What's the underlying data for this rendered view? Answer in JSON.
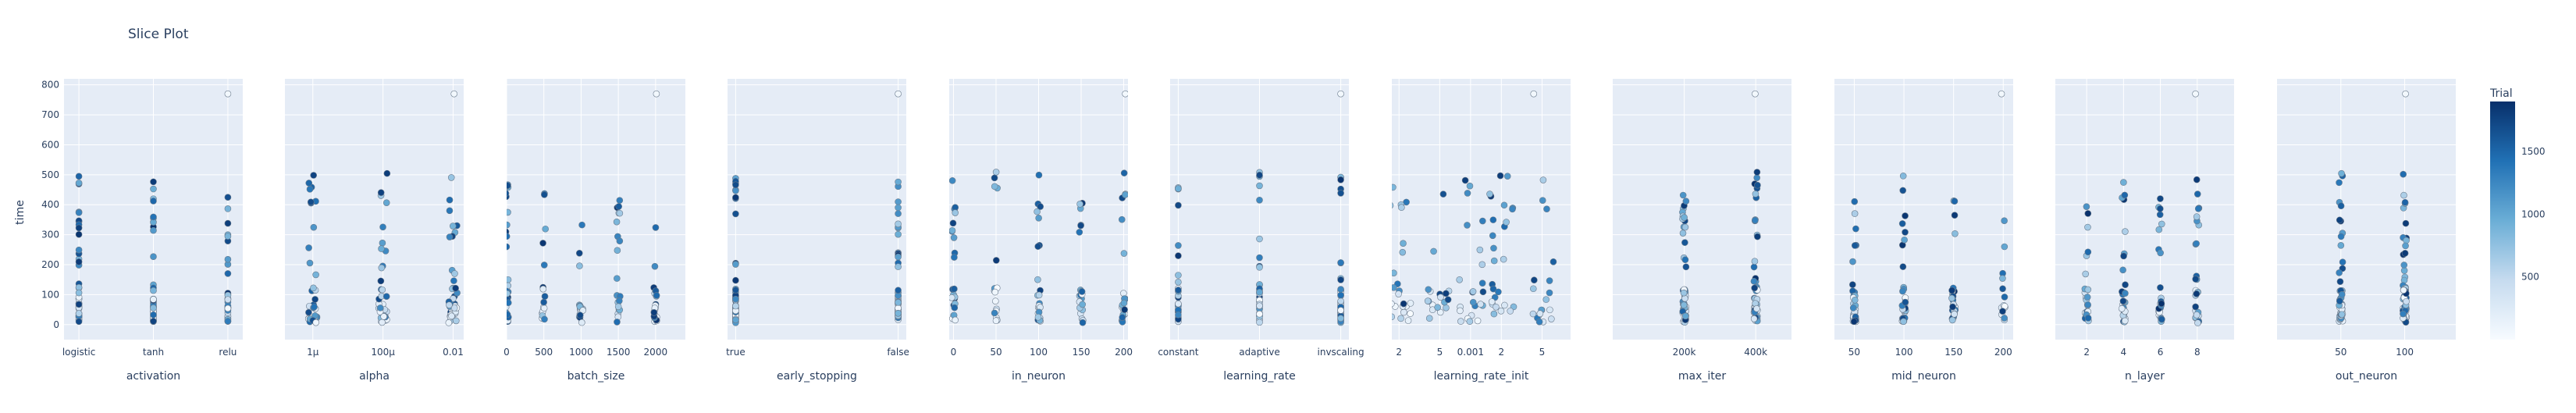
{
  "chart_data": {
    "type": "scatter",
    "title": "Slice Plot",
    "ylabel": "time",
    "y_ticks": [
      "0",
      "100",
      "200",
      "300",
      "400",
      "500",
      "600",
      "700",
      "800"
    ],
    "ylim": [
      -50,
      820
    ],
    "y_scale": "linear",
    "grid": true,
    "colorbar": {
      "title": "Trial",
      "range": [
        0,
        1900
      ],
      "ticks": [
        "500",
        "1000",
        "1500"
      ],
      "tick_values": [
        500,
        1000,
        1500
      ],
      "colors": [
        "#f7fbff",
        "#c6dbef",
        "#6baed6",
        "#2171b5",
        "#08306b"
      ]
    },
    "colors": {
      "plot_bg": "#e5ecf6",
      "grid": "#ffffff",
      "marker_line": "#6a7a8c",
      "text": "#2a3f5f"
    },
    "panels": [
      {
        "xlabel": "activation",
        "x_scale": "categorical",
        "categories": [
          "logistic",
          "tanh",
          "relu"
        ],
        "ticks": [
          "logistic",
          "tanh",
          "relu"
        ],
        "tick_values": [
          0,
          1,
          2
        ],
        "xlim": [
          -0.2,
          2.2
        ]
      },
      {
        "xlabel": "alpha",
        "x_scale": "log",
        "ticks": [
          "1μ",
          "100μ",
          "0.01"
        ],
        "tick_values": [
          1e-06,
          0.0001,
          0.01
        ],
        "xlim": [
          1.6e-07,
          0.02
        ]
      },
      {
        "xlabel": "batch_size",
        "x_scale": "linear",
        "ticks": [
          "0",
          "500",
          "1000",
          "1500",
          "2000"
        ],
        "tick_values": [
          0,
          500,
          1000,
          1500,
          2000
        ],
        "xlim": [
          0,
          2400
        ]
      },
      {
        "xlabel": "early_stopping",
        "x_scale": "categorical",
        "categories": [
          "true",
          "false"
        ],
        "ticks": [
          "true",
          "false"
        ],
        "tick_values": [
          0,
          1
        ],
        "xlim": [
          -0.05,
          1.05
        ]
      },
      {
        "xlabel": "in_neuron",
        "x_scale": "linear",
        "ticks": [
          "0",
          "50",
          "100",
          "150",
          "200"
        ],
        "tick_values": [
          0,
          50,
          100,
          150,
          200
        ],
        "xlim": [
          -5,
          205
        ]
      },
      {
        "xlabel": "learning_rate",
        "x_scale": "categorical",
        "categories": [
          "constant",
          "adaptive",
          "invscaling"
        ],
        "ticks": [
          "constant",
          "adaptive",
          "invscaling"
        ],
        "tick_values": [
          0,
          1,
          2
        ],
        "xlim": [
          -0.1,
          2.1
        ]
      },
      {
        "xlabel": "learning_rate_init",
        "x_scale": "log",
        "ticks": [
          "2",
          "5",
          "0.001",
          "2",
          "5"
        ],
        "tick_values": [
          0.0002,
          0.0005,
          0.001,
          0.002,
          0.005
        ],
        "xlim": [
          0.00017,
          0.0095
        ]
      },
      {
        "xlabel": "max_iter",
        "x_scale": "linear",
        "ticks": [
          "200k",
          "400k"
        ],
        "tick_values": [
          200000,
          400000
        ],
        "xlim": [
          0,
          500000
        ]
      },
      {
        "xlabel": "mid_neuron",
        "x_scale": "linear",
        "ticks": [
          "50",
          "100",
          "150",
          "200"
        ],
        "tick_values": [
          50,
          100,
          150,
          200
        ],
        "xlim": [
          30,
          210
        ]
      },
      {
        "xlabel": "n_layer",
        "x_scale": "linear",
        "ticks": [
          "2",
          "4",
          "6",
          "8"
        ],
        "tick_values": [
          2,
          4,
          6,
          8
        ],
        "xlim": [
          0.3,
          10
        ]
      },
      {
        "xlabel": "out_neuron",
        "x_scale": "linear",
        "ticks": [
          "50",
          "100"
        ],
        "tick_values": [
          50,
          100
        ],
        "xlim": [
          0,
          140
        ]
      }
    ]
  }
}
